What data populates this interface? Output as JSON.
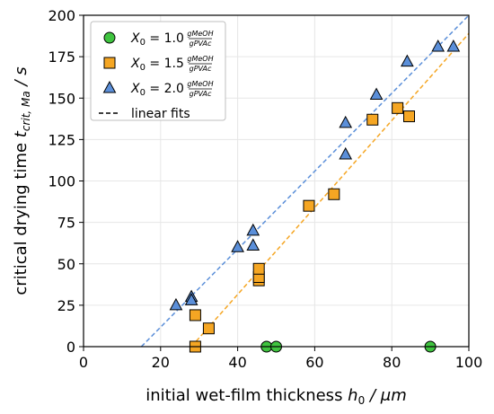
{
  "chart_data": {
    "type": "scatter",
    "xlabel": "initial wet-film thickness",
    "xlabel_symbol": "h",
    "xlabel_sub": "0",
    "xlabel_unit": "μm",
    "ylabel": "critical drying time",
    "ylabel_symbol": "t",
    "ylabel_sub": "crit, Ma",
    "ylabel_unit": "s",
    "xlim": [
      0,
      100
    ],
    "ylim": [
      0,
      200
    ],
    "xticks": [
      "0",
      "20",
      "40",
      "60",
      "80",
      "100"
    ],
    "yticks": [
      "0",
      "25",
      "50",
      "75",
      "100",
      "125",
      "150",
      "175",
      "200"
    ],
    "grid": true,
    "legend_position": "top-left",
    "series": [
      {
        "name": "X0 = 1.0 gMeOH/gPVAc",
        "label_var": "X",
        "label_sub": "0",
        "label_val": " = 1.0 ",
        "frac_num": "gMeOH",
        "frac_den": "gPVAc",
        "marker": "circle",
        "color": "#3fc43f",
        "x": [
          47.5,
          50,
          90
        ],
        "y": [
          0,
          0,
          0
        ]
      },
      {
        "name": "X0 = 1.5 gMeOH/gPVAc",
        "label_var": "X",
        "label_sub": "0",
        "label_val": " = 1.5 ",
        "frac_num": "gMeOH",
        "frac_den": "gPVAc",
        "marker": "square",
        "color": "#f5a623",
        "x": [
          29,
          29,
          32.5,
          45.5,
          45.5,
          45.5,
          58.5,
          65,
          75,
          81.5,
          84.5
        ],
        "y": [
          0,
          19,
          11,
          40,
          42,
          47,
          85,
          92,
          137,
          144,
          139
        ]
      },
      {
        "name": "X0 = 2.0 gMeOH/gPVAc",
        "label_var": "X",
        "label_sub": "0",
        "label_val": " = 2.0 ",
        "frac_num": "gMeOH",
        "frac_den": "gPVAc",
        "marker": "triangle",
        "color": "#5b8fd9",
        "x": [
          24,
          28,
          28,
          40,
          44,
          44,
          68,
          68,
          76,
          84,
          92,
          96
        ],
        "y": [
          25,
          30,
          28,
          60,
          61,
          70,
          135,
          116,
          152,
          172,
          181,
          181
        ]
      }
    ],
    "fits": [
      {
        "series": "X0 = 1.5 gMeOH/gPVAc",
        "color": "#f5a623",
        "x": [
          28,
          100
        ],
        "y": [
          0,
          189
        ]
      },
      {
        "series": "X0 = 2.0 gMeOH/gPVAc",
        "color": "#5b8fd9",
        "x": [
          15,
          100
        ],
        "y": [
          0,
          200
        ]
      }
    ],
    "fit_legend_label": "linear fits"
  }
}
